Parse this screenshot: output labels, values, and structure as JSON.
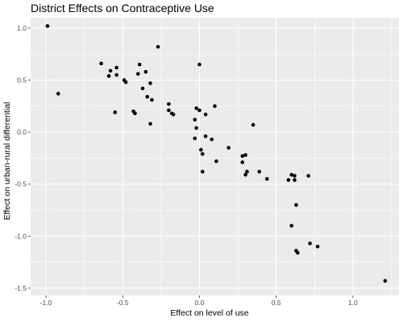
{
  "chart_data": {
    "type": "scatter",
    "title": "District Effects on Contraceptive Use",
    "xlabel": "Effect on level of use",
    "ylabel": "Effect on urban-rural differential",
    "xlim": [
      -1.1,
      1.3
    ],
    "ylim": [
      -1.57,
      1.1
    ],
    "x_ticks": [
      -1.0,
      -0.5,
      0.0,
      0.5,
      1.0
    ],
    "x_tick_labels": [
      "-1.0",
      "-0.5",
      "0.0",
      "0.5",
      "1.0"
    ],
    "y_ticks": [
      -1.5,
      -1.0,
      -0.5,
      0.0,
      0.5,
      1.0
    ],
    "y_tick_labels": [
      "-1.5",
      "-1.0",
      "-0.5",
      "0.0",
      "0.5",
      "1.0"
    ],
    "grid": true,
    "colors": {
      "panel": "#ebebeb",
      "grid_major": "#ffffff",
      "point": "#000000"
    },
    "points": [
      {
        "x": -0.99,
        "y": 1.02
      },
      {
        "x": -0.92,
        "y": 0.37
      },
      {
        "x": -0.64,
        "y": 0.66
      },
      {
        "x": -0.58,
        "y": 0.59
      },
      {
        "x": -0.59,
        "y": 0.54
      },
      {
        "x": -0.54,
        "y": 0.62
      },
      {
        "x": -0.54,
        "y": 0.55
      },
      {
        "x": -0.55,
        "y": 0.19
      },
      {
        "x": -0.49,
        "y": 0.5
      },
      {
        "x": -0.48,
        "y": 0.48
      },
      {
        "x": -0.43,
        "y": 0.2
      },
      {
        "x": -0.42,
        "y": 0.18
      },
      {
        "x": -0.4,
        "y": 0.56
      },
      {
        "x": -0.39,
        "y": 0.65
      },
      {
        "x": -0.37,
        "y": 0.42
      },
      {
        "x": -0.35,
        "y": 0.58
      },
      {
        "x": -0.34,
        "y": 0.34
      },
      {
        "x": -0.32,
        "y": 0.47
      },
      {
        "x": -0.31,
        "y": 0.31
      },
      {
        "x": -0.32,
        "y": 0.08
      },
      {
        "x": -0.27,
        "y": 0.82
      },
      {
        "x": -0.2,
        "y": 0.27
      },
      {
        "x": -0.2,
        "y": 0.21
      },
      {
        "x": -0.18,
        "y": 0.18
      },
      {
        "x": -0.17,
        "y": 0.17
      },
      {
        "x": -0.03,
        "y": 0.12
      },
      {
        "x": -0.02,
        "y": 0.23
      },
      {
        "x": -0.02,
        "y": 0.04
      },
      {
        "x": -0.03,
        "y": -0.06
      },
      {
        "x": 0.0,
        "y": 0.65
      },
      {
        "x": 0.0,
        "y": 0.21
      },
      {
        "x": 0.01,
        "y": -0.17
      },
      {
        "x": 0.02,
        "y": -0.21
      },
      {
        "x": 0.02,
        "y": -0.38
      },
      {
        "x": 0.04,
        "y": 0.17
      },
      {
        "x": 0.04,
        "y": -0.04
      },
      {
        "x": 0.08,
        "y": -0.07
      },
      {
        "x": 0.1,
        "y": 0.25
      },
      {
        "x": 0.11,
        "y": -0.28
      },
      {
        "x": 0.19,
        "y": -0.15
      },
      {
        "x": 0.28,
        "y": -0.23
      },
      {
        "x": 0.28,
        "y": -0.29
      },
      {
        "x": 0.3,
        "y": -0.22
      },
      {
        "x": 0.3,
        "y": -0.41
      },
      {
        "x": 0.31,
        "y": -0.38
      },
      {
        "x": 0.35,
        "y": 0.07
      },
      {
        "x": 0.39,
        "y": -0.38
      },
      {
        "x": 0.44,
        "y": -0.45
      },
      {
        "x": 0.58,
        "y": -0.46
      },
      {
        "x": 0.6,
        "y": -0.41
      },
      {
        "x": 0.62,
        "y": -0.42
      },
      {
        "x": 0.62,
        "y": -0.46
      },
      {
        "x": 0.63,
        "y": -0.7
      },
      {
        "x": 0.71,
        "y": -0.42
      },
      {
        "x": 0.6,
        "y": -0.9
      },
      {
        "x": 0.72,
        "y": -1.07
      },
      {
        "x": 0.77,
        "y": -1.1
      },
      {
        "x": 0.63,
        "y": -1.14
      },
      {
        "x": 0.64,
        "y": -1.16
      },
      {
        "x": 1.21,
        "y": -1.43
      }
    ]
  }
}
